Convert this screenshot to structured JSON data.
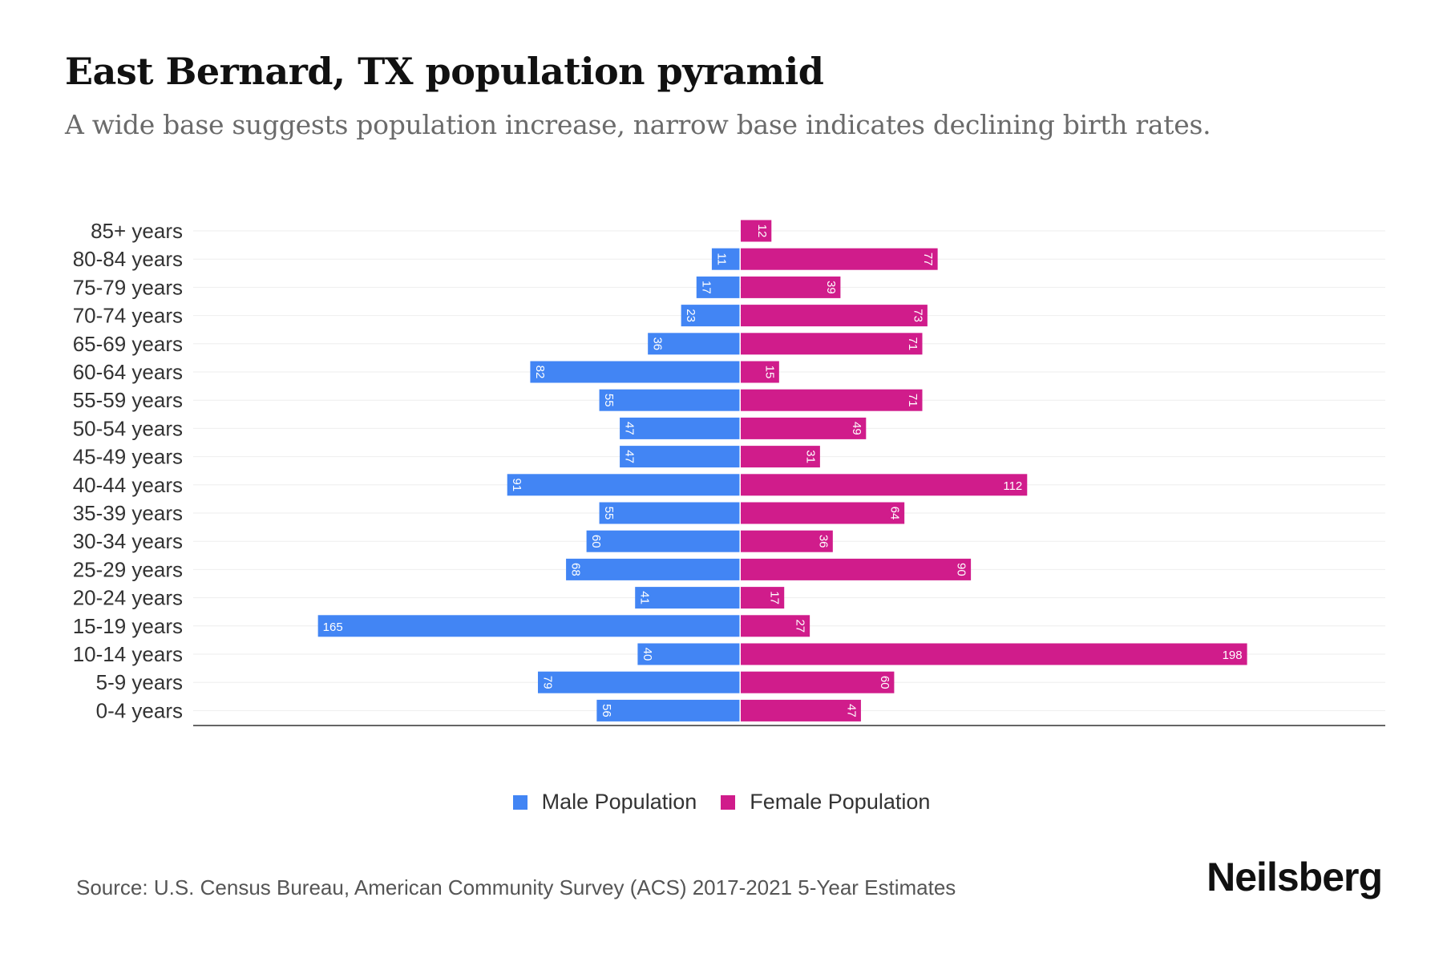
{
  "title": "East Bernard, TX population pyramid",
  "subtitle": "A wide base suggests population increase, narrow base indicates declining birth rates.",
  "source": "Source: U.S. Census Bureau, American Community Survey (ACS) 2017-2021 5-Year Estimates",
  "brand": "Neilsberg",
  "colors": {
    "male": "#4285f4",
    "female": "#d01c8b"
  },
  "chart_data": {
    "type": "bar",
    "orientation": "horizontal-pyramid",
    "categories": [
      "85+ years",
      "80-84 years",
      "75-79 years",
      "70-74 years",
      "65-69 years",
      "60-64 years",
      "55-59 years",
      "50-54 years",
      "45-49 years",
      "40-44 years",
      "35-39 years",
      "30-34 years",
      "25-29 years",
      "20-24 years",
      "15-19 years",
      "10-14 years",
      "5-9 years",
      "0-4 years"
    ],
    "series": [
      {
        "name": "Male Population",
        "values": [
          0,
          11,
          17,
          23,
          36,
          82,
          55,
          47,
          47,
          91,
          55,
          60,
          68,
          41,
          165,
          40,
          79,
          56
        ]
      },
      {
        "name": "Female Population",
        "values": [
          12,
          77,
          39,
          73,
          71,
          15,
          71,
          49,
          31,
          112,
          64,
          36,
          90,
          17,
          27,
          198,
          60,
          47
        ]
      }
    ],
    "xlim": [
      -185,
      220
    ],
    "legend_position": "bottom-center",
    "grid": true
  }
}
